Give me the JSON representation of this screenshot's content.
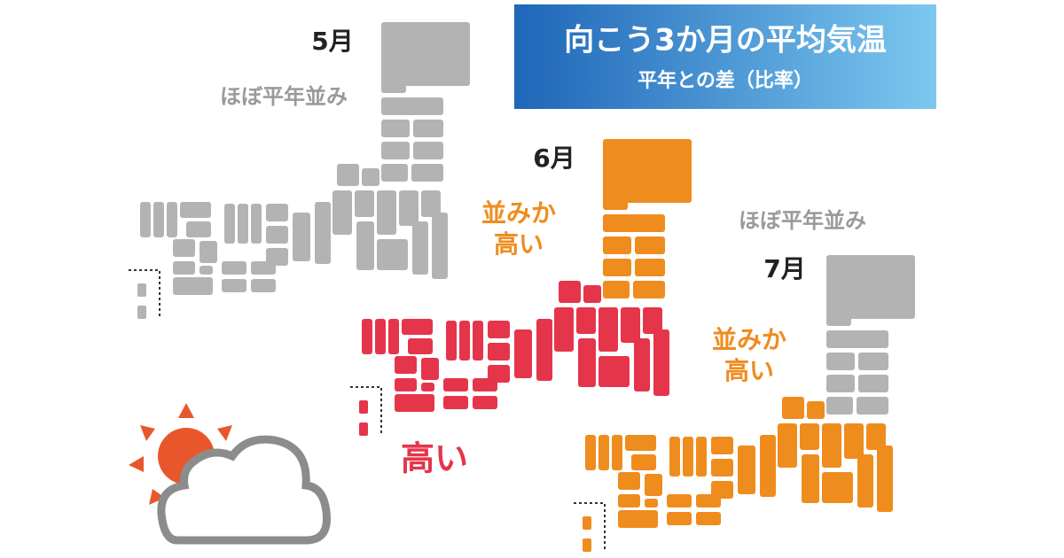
{
  "header": {
    "title": "向こう3か月の平均気温",
    "subtitle": "平年との差（比率）"
  },
  "maps": [
    {
      "month": "5月",
      "colors": {
        "north": "#b3b3b3",
        "south": "#b3b3b3"
      },
      "labels": [
        {
          "lines": [
            "ほぼ平年並み"
          ],
          "color": "#9a9a9a"
        }
      ]
    },
    {
      "month": "6月",
      "colors": {
        "north": "#ef8c1e",
        "south": "#e5354b"
      },
      "labels": [
        {
          "lines": [
            "並みか",
            "高い"
          ],
          "color": "#ef8c1e"
        },
        {
          "lines": [
            "高い"
          ],
          "color": "#e5354b"
        }
      ]
    },
    {
      "month": "7月",
      "colors": {
        "north": "#b3b3b3",
        "south": "#ef8c1e"
      },
      "labels": [
        {
          "lines": [
            "ほぼ平年並み"
          ],
          "color": "#9a9a9a"
        },
        {
          "lines": [
            "並みか",
            "高い"
          ],
          "color": "#ef8c1e"
        }
      ]
    }
  ]
}
